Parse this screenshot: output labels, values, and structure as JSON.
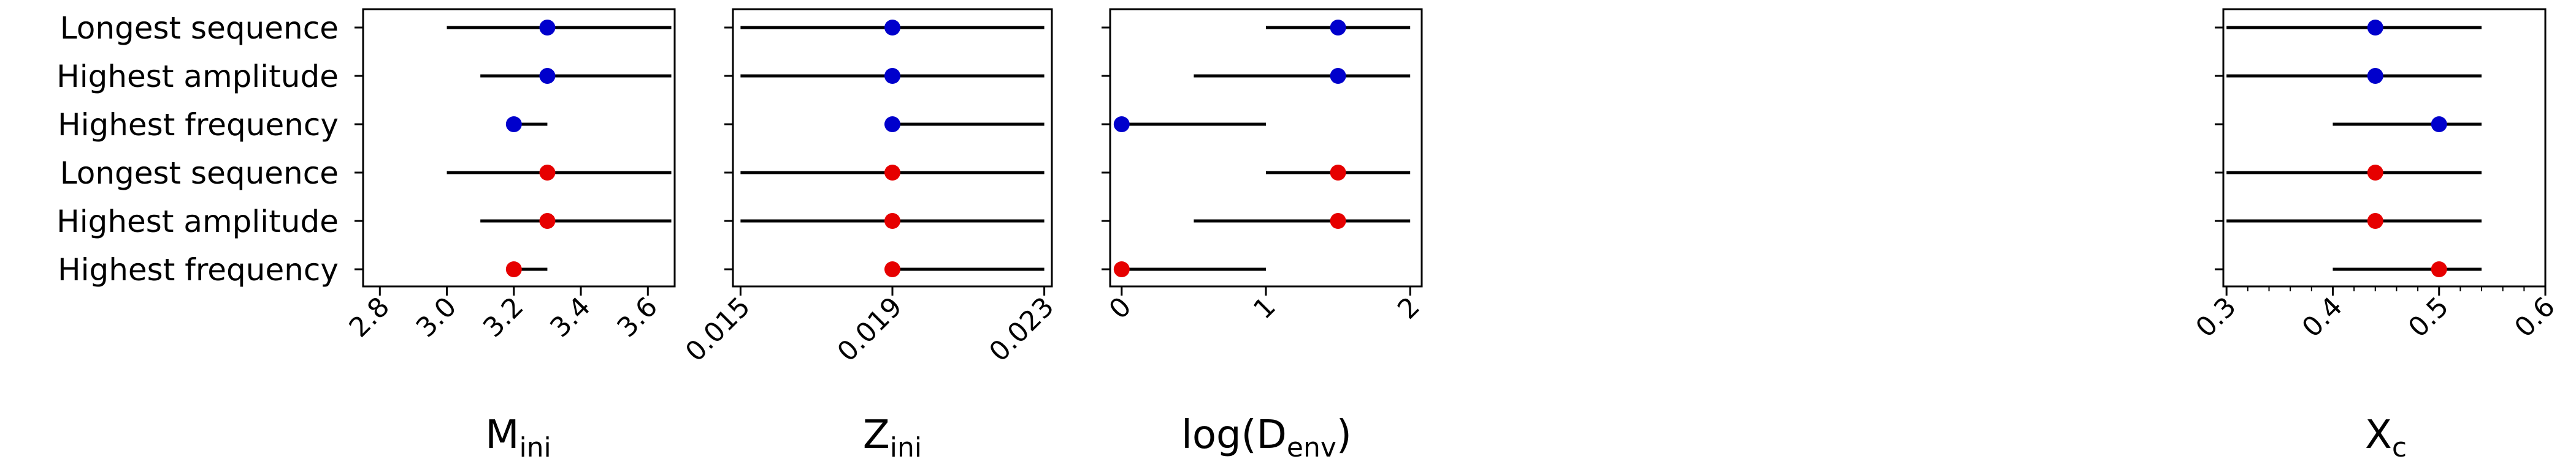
{
  "categories": [
    "Longest sequence",
    "Highest amplitude",
    "Highest frequency",
    "Longest sequence",
    "Highest amplitude",
    "Highest frequency"
  ],
  "colors": {
    "blue": "#0000cc",
    "red": "#e60000",
    "line": "#000000",
    "axes": "#000000"
  },
  "chart_data": [
    {
      "type": "scatter",
      "xlabel": "M",
      "xlabel_sub": "ini",
      "xlim": [
        2.75,
        3.68
      ],
      "xticks": [
        2.8,
        3.0,
        3.2,
        3.4,
        3.6
      ],
      "xtick_labels": [
        "2.8",
        "3.0",
        "3.2",
        "3.4",
        "3.6"
      ],
      "minor_ticks": [],
      "rows": [
        {
          "category": "Longest sequence",
          "series": "blue",
          "value": 3.3,
          "low": 3.0,
          "high": 3.67
        },
        {
          "category": "Highest amplitude",
          "series": "blue",
          "value": 3.3,
          "low": 3.1,
          "high": 3.67
        },
        {
          "category": "Highest frequency",
          "series": "blue",
          "value": 3.2,
          "low": 3.2,
          "high": 3.3
        },
        {
          "category": "Longest sequence",
          "series": "red",
          "value": 3.3,
          "low": 3.0,
          "high": 3.67
        },
        {
          "category": "Highest amplitude",
          "series": "red",
          "value": 3.3,
          "low": 3.1,
          "high": 3.67
        },
        {
          "category": "Highest frequency",
          "series": "red",
          "value": 3.2,
          "low": 3.2,
          "high": 3.3
        }
      ]
    },
    {
      "type": "scatter",
      "xlabel": "Z",
      "xlabel_sub": "ini",
      "xlim": [
        0.0148,
        0.0232
      ],
      "xticks": [
        0.015,
        0.019,
        0.023
      ],
      "xtick_labels": [
        "0.015",
        "0.019",
        "0.023"
      ],
      "minor_ticks": [],
      "rows": [
        {
          "category": "Longest sequence",
          "series": "blue",
          "value": 0.019,
          "low": 0.015,
          "high": 0.023
        },
        {
          "category": "Highest amplitude",
          "series": "blue",
          "value": 0.019,
          "low": 0.015,
          "high": 0.023
        },
        {
          "category": "Highest frequency",
          "series": "blue",
          "value": 0.019,
          "low": 0.019,
          "high": 0.023
        },
        {
          "category": "Longest sequence",
          "series": "red",
          "value": 0.019,
          "low": 0.015,
          "high": 0.023
        },
        {
          "category": "Highest amplitude",
          "series": "red",
          "value": 0.019,
          "low": 0.015,
          "high": 0.023
        },
        {
          "category": "Highest frequency",
          "series": "red",
          "value": 0.019,
          "low": 0.019,
          "high": 0.023
        }
      ]
    },
    {
      "type": "scatter",
      "xlabel": "log(D",
      "xlabel_sub": "env",
      "xlabel_suffix": ")",
      "xlim": [
        -0.08,
        2.08
      ],
      "xticks": [
        0,
        1,
        2
      ],
      "xtick_labels": [
        "0",
        "1",
        "2"
      ],
      "minor_ticks": [],
      "rows": [
        {
          "category": "Longest sequence",
          "series": "blue",
          "value": 1.5,
          "low": 1.0,
          "high": 2.0
        },
        {
          "category": "Highest amplitude",
          "series": "blue",
          "value": 1.5,
          "low": 0.5,
          "high": 2.0
        },
        {
          "category": "Highest frequency",
          "series": "blue",
          "value": 0.0,
          "low": 0.0,
          "high": 1.0
        },
        {
          "category": "Longest sequence",
          "series": "red",
          "value": 1.5,
          "low": 1.0,
          "high": 2.0
        },
        {
          "category": "Highest amplitude",
          "series": "red",
          "value": 1.5,
          "low": 0.5,
          "high": 2.0
        },
        {
          "category": "Highest frequency",
          "series": "red",
          "value": 0.0,
          "low": 0.0,
          "high": 1.0
        }
      ]
    },
    {
      "type": "scatter",
      "xlabel": "X",
      "xlabel_sub": "c",
      "xlim": [
        0.297,
        0.6
      ],
      "xticks": [
        0.3,
        0.4,
        0.5,
        0.6
      ],
      "xtick_labels": [
        "0.3",
        "0.4",
        "0.5",
        "0.6"
      ],
      "minor_ticks": [
        0.32,
        0.34,
        0.36,
        0.38,
        0.42,
        0.44,
        0.46,
        0.48,
        0.52,
        0.54,
        0.56,
        0.58
      ],
      "rows": [
        {
          "category": "Longest sequence",
          "series": "blue",
          "value": 0.44,
          "low": 0.3,
          "high": 0.54
        },
        {
          "category": "Highest amplitude",
          "series": "blue",
          "value": 0.44,
          "low": 0.3,
          "high": 0.54
        },
        {
          "category": "Highest frequency",
          "series": "blue",
          "value": 0.5,
          "low": 0.4,
          "high": 0.54
        },
        {
          "category": "Longest sequence",
          "series": "red",
          "value": 0.44,
          "low": 0.3,
          "high": 0.54
        },
        {
          "category": "Highest amplitude",
          "series": "red",
          "value": 0.44,
          "low": 0.3,
          "high": 0.54
        },
        {
          "category": "Highest frequency",
          "series": "red",
          "value": 0.5,
          "low": 0.4,
          "high": 0.54
        }
      ]
    }
  ]
}
